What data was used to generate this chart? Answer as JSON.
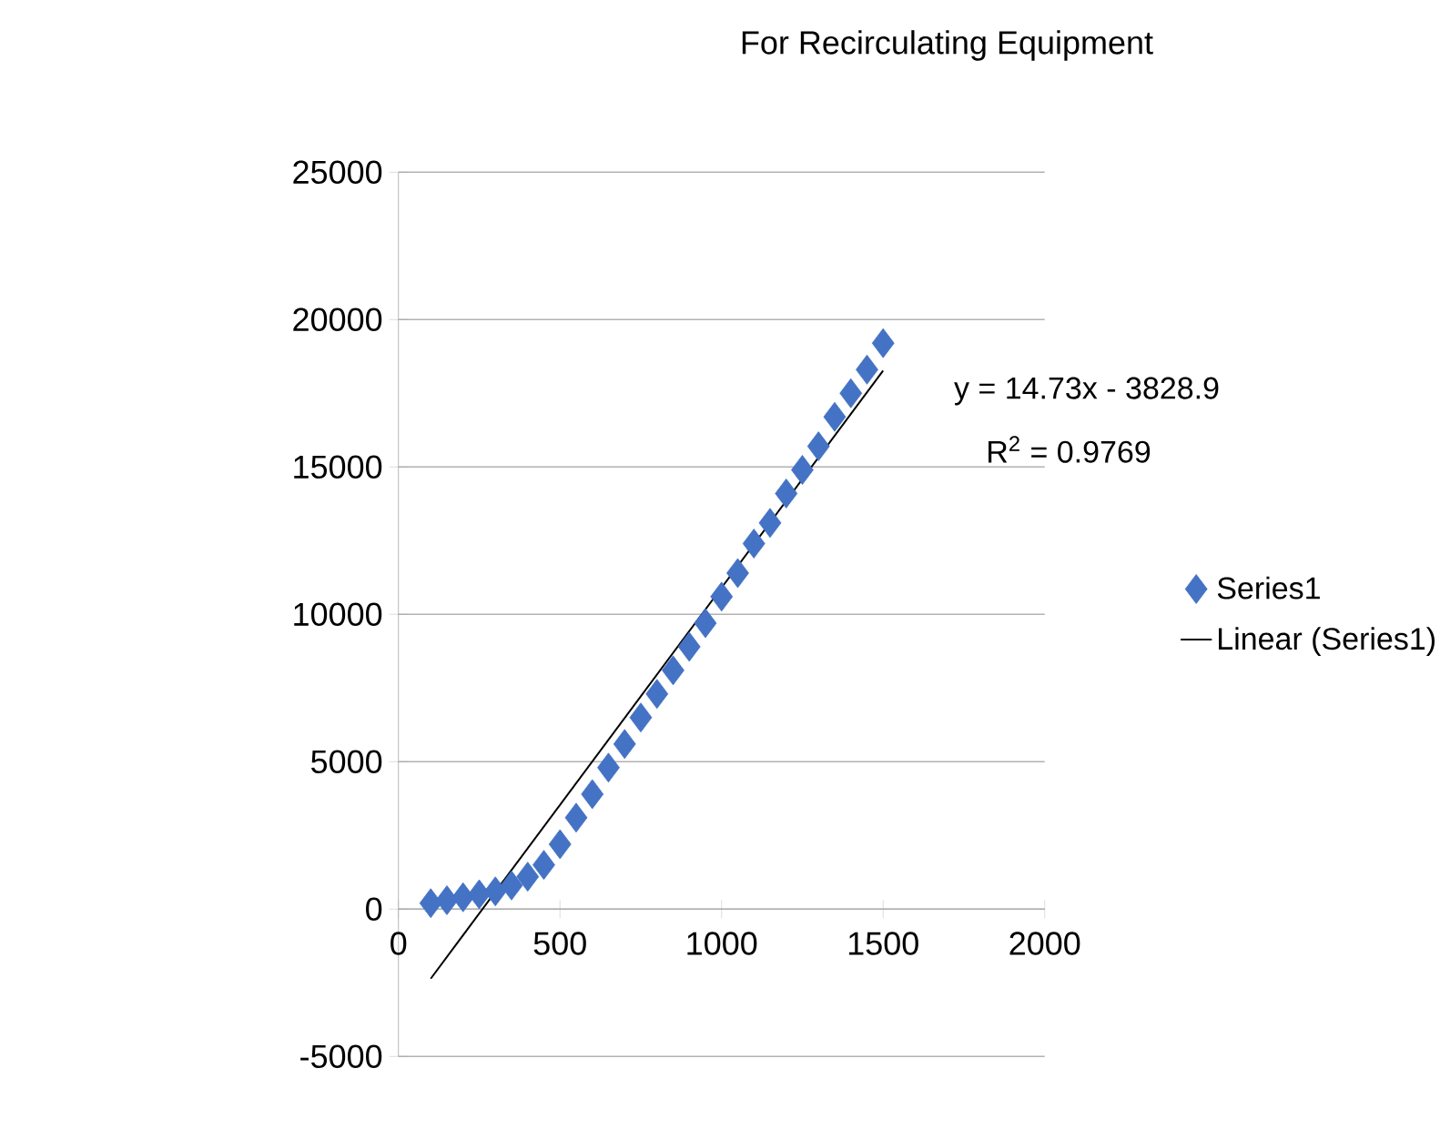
{
  "chart_data": {
    "type": "scatter",
    "title": "For Recirculating Equipment",
    "xlim": [
      0,
      2000
    ],
    "xticks": [
      0,
      500,
      1000,
      1500,
      2000
    ],
    "ylim": [
      -5000,
      25000
    ],
    "yticks": [
      -5000,
      0,
      5000,
      10000,
      15000,
      20000,
      25000
    ],
    "grid": "y",
    "legend": "right",
    "annotations": [
      "y = 14.73x - 3828.9",
      "R$^{2}$ = 0.9769"
    ],
    "series": [
      {
        "name": "Series1",
        "marker": "diamond",
        "color": "#4472c4",
        "x": [
          100,
          150,
          200,
          250,
          300,
          350,
          400,
          450,
          500,
          550,
          600,
          650,
          700,
          750,
          800,
          850,
          900,
          950,
          1000,
          1050,
          1100,
          1150,
          1200,
          1250,
          1300,
          1350,
          1400,
          1450,
          1500
        ],
        "values": [
          200,
          300,
          400,
          500,
          600,
          800,
          1100,
          1500,
          2200,
          3100,
          3900,
          4800,
          5600,
          6500,
          7300,
          8100,
          8900,
          9700,
          10600,
          11400,
          12400,
          13100,
          14100,
          14900,
          15700,
          16700,
          17500,
          18300,
          19200
        ]
      },
      {
        "name": "Linear (Series1)",
        "type": "line",
        "marker": "none",
        "line_style": "solid",
        "color": "#000000",
        "x": [
          100,
          1500
        ],
        "values": [
          -2360,
          18270
        ]
      }
    ]
  }
}
